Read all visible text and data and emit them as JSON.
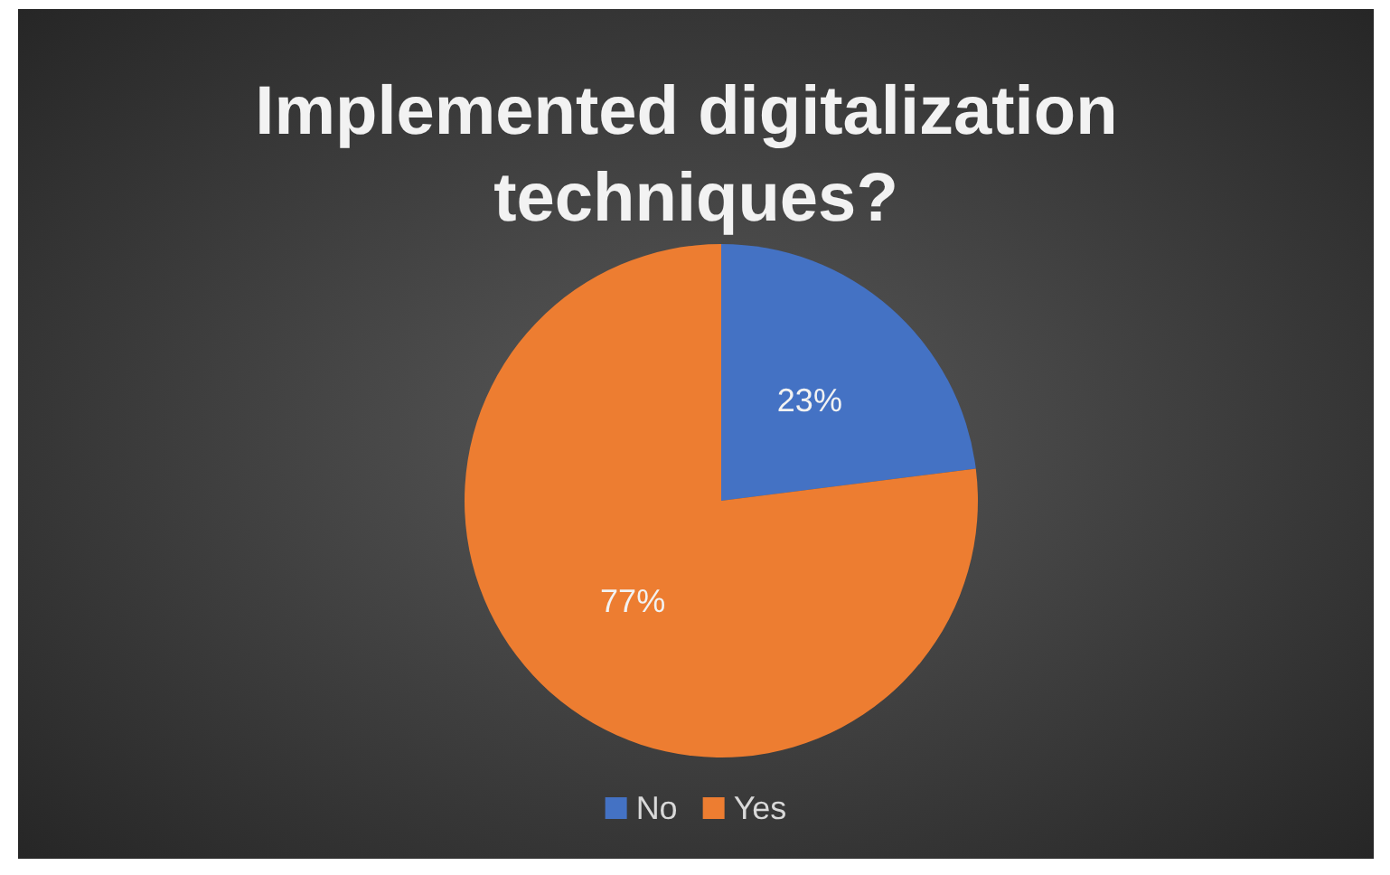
{
  "chart_data": {
    "type": "pie",
    "title": "Implemented digitalization techniques?",
    "categories": [
      "No",
      "Yes"
    ],
    "values": [
      23,
      77
    ],
    "colors": [
      "#4472c4",
      "#ed7d31"
    ],
    "value_labels": [
      "23%",
      "77%"
    ],
    "legend": "bottom"
  }
}
